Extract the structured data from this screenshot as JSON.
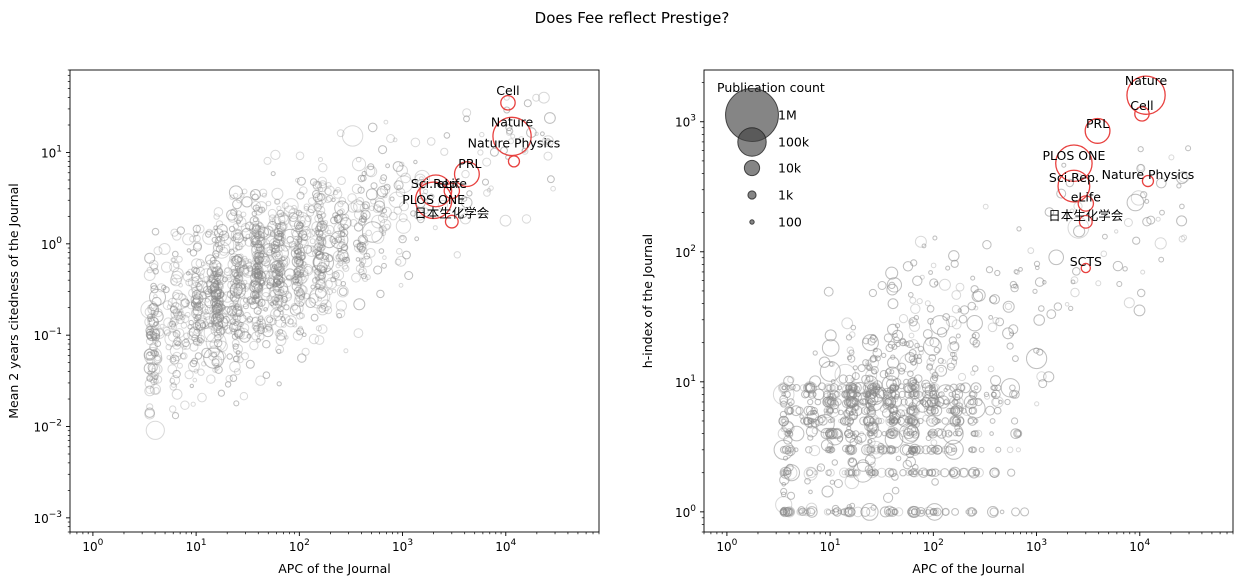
{
  "figure": {
    "title": "Does Fee reflect Prestige?"
  },
  "chart_data": [
    {
      "type": "scatter",
      "xlabel": "APC of the Journal",
      "ylabel": "Mean 2 years citedness of the Journal",
      "xscale": "log",
      "yscale": "log",
      "xlim": [
        0.6,
        80000
      ],
      "ylim": [
        0.0007,
        80
      ],
      "xticks": [
        {
          "value": 1,
          "base": "10",
          "exp": "0"
        },
        {
          "value": 10,
          "base": "10",
          "exp": "1"
        },
        {
          "value": 100,
          "base": "10",
          "exp": "2"
        },
        {
          "value": 1000,
          "base": "10",
          "exp": "3"
        },
        {
          "value": 10000,
          "base": "10",
          "exp": "4"
        }
      ],
      "yticks": [
        {
          "value": 0.001,
          "base": "10",
          "exp": "−3"
        },
        {
          "value": 0.01,
          "base": "10",
          "exp": "−2"
        },
        {
          "value": 0.1,
          "base": "10",
          "exp": "−1"
        },
        {
          "value": 1,
          "base": "10",
          "exp": "0"
        },
        {
          "value": 10,
          "base": "10",
          "exp": "1"
        }
      ],
      "highlight_color": "#e8413f",
      "background_color": "#8a8a8a",
      "highlighted": [
        {
          "label": "Cell",
          "x": 10500,
          "y": 35,
          "pubs": 8000
        },
        {
          "label": "Nature",
          "x": 11500,
          "y": 15,
          "pubs": 300000
        },
        {
          "label": "Nature Physics",
          "x": 12000,
          "y": 8,
          "pubs": 3000
        },
        {
          "label": "PRL",
          "x": 4200,
          "y": 5.8,
          "pubs": 60000
        },
        {
          "label": "Sci.Rep.",
          "x": 2100,
          "y": 3.8,
          "pubs": 150000
        },
        {
          "label": "eLife",
          "x": 3000,
          "y": 3.8,
          "pubs": 10000
        },
        {
          "label": "PLOS ONE",
          "x": 2000,
          "y": 3.0,
          "pubs": 250000
        },
        {
          "label": "日本生化学会",
          "x": 3000,
          "y": 1.75,
          "pubs": 5000
        }
      ]
    },
    {
      "type": "scatter",
      "xlabel": "APC of the Journal",
      "ylabel": "h-index of the Journal",
      "xscale": "log",
      "yscale": "log",
      "xlim": [
        0.6,
        80000
      ],
      "ylim": [
        0.7,
        2500
      ],
      "xticks": [
        {
          "value": 1,
          "base": "10",
          "exp": "0"
        },
        {
          "value": 10,
          "base": "10",
          "exp": "1"
        },
        {
          "value": 100,
          "base": "10",
          "exp": "2"
        },
        {
          "value": 1000,
          "base": "10",
          "exp": "3"
        },
        {
          "value": 10000,
          "base": "10",
          "exp": "4"
        }
      ],
      "yticks": [
        {
          "value": 1,
          "base": "10",
          "exp": "0"
        },
        {
          "value": 10,
          "base": "10",
          "exp": "1"
        },
        {
          "value": 100,
          "base": "10",
          "exp": "2"
        },
        {
          "value": 1000,
          "base": "10",
          "exp": "3"
        }
      ],
      "highlight_color": "#e8413f",
      "background_color": "#8a8a8a",
      "highlighted": [
        {
          "label": "Nature",
          "x": 11500,
          "y": 1600,
          "pubs": 300000
        },
        {
          "label": "Cell",
          "x": 10500,
          "y": 1150,
          "pubs": 8000
        },
        {
          "label": "PRL",
          "x": 3900,
          "y": 850,
          "pubs": 60000
        },
        {
          "label": "PLOS ONE",
          "x": 2300,
          "y": 480,
          "pubs": 250000
        },
        {
          "label": "Sci.Rep.",
          "x": 2300,
          "y": 320,
          "pubs": 150000
        },
        {
          "label": "Nature Physics",
          "x": 12000,
          "y": 350,
          "pubs": 3000
        },
        {
          "label": "eLife",
          "x": 3000,
          "y": 235,
          "pubs": 10000
        },
        {
          "label": "日本生化学会",
          "x": 3000,
          "y": 170,
          "pubs": 5000
        },
        {
          "label": "SCTS",
          "x": 3000,
          "y": 75,
          "pubs": 1500
        }
      ],
      "legend": {
        "title": "Publication count",
        "placement": "upper-left",
        "entries": [
          {
            "label": "1M",
            "pubs": 1000000
          },
          {
            "label": "100k",
            "pubs": 100000
          },
          {
            "label": "10k",
            "pubs": 10000
          },
          {
            "label": "1k",
            "pubs": 1000
          },
          {
            "label": "100",
            "pubs": 100
          }
        ]
      }
    }
  ]
}
